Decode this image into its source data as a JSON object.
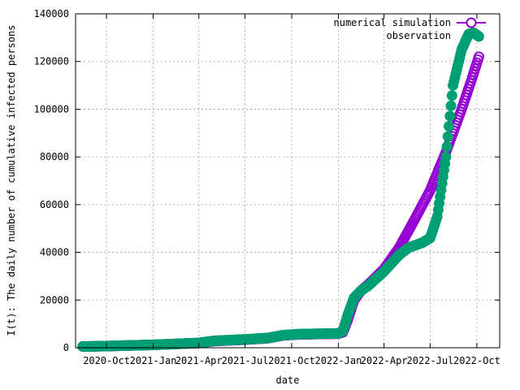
{
  "chart_data": {
    "type": "scatter",
    "xlabel": "date",
    "ylabel": "I(t): The daily number of cumulative infected persons",
    "x_axis_type": "date",
    "xlim": [
      "2020-08-01",
      "2022-11-15"
    ],
    "ylim": [
      0,
      140000
    ],
    "x_ticks": [
      {
        "date": "2020-10-01",
        "label": "2020-Oct"
      },
      {
        "date": "2021-01-01",
        "label": "2021-Jan"
      },
      {
        "date": "2021-04-01",
        "label": "2021-Apr"
      },
      {
        "date": "2021-07-01",
        "label": "2021-Jul"
      },
      {
        "date": "2021-10-01",
        "label": "2021-Oct"
      },
      {
        "date": "2022-01-01",
        "label": "2022-Jan"
      },
      {
        "date": "2022-04-01",
        "label": "2022-Apr"
      },
      {
        "date": "2022-07-01",
        "label": "2022-Jul"
      },
      {
        "date": "2022-10-01",
        "label": "2022-Oct"
      }
    ],
    "y_ticks": [
      0,
      20000,
      40000,
      60000,
      80000,
      100000,
      120000,
      140000
    ],
    "grid": true,
    "legend_position": "top-right",
    "series": [
      {
        "name": "numerical simulation",
        "color": "#9400d3",
        "marker": "open-circle",
        "points": [
          [
            "2020-08-15",
            500
          ],
          [
            "2020-10-01",
            700
          ],
          [
            "2021-01-01",
            1200
          ],
          [
            "2021-04-01",
            2000
          ],
          [
            "2021-05-01",
            2800
          ],
          [
            "2021-07-01",
            3400
          ],
          [
            "2021-08-15",
            4000
          ],
          [
            "2021-09-15",
            5200
          ],
          [
            "2021-10-15",
            5600
          ],
          [
            "2021-12-01",
            5800
          ],
          [
            "2022-01-01",
            5900
          ],
          [
            "2022-01-10",
            6500
          ],
          [
            "2022-01-20",
            12000
          ],
          [
            "2022-02-01",
            20000
          ],
          [
            "2022-02-15",
            24000
          ],
          [
            "2022-03-01",
            26500
          ],
          [
            "2022-04-01",
            33000
          ],
          [
            "2022-05-01",
            42000
          ],
          [
            "2022-06-01",
            54000
          ],
          [
            "2022-07-01",
            66000
          ],
          [
            "2022-08-01",
            82000
          ],
          [
            "2022-09-01",
            100000
          ],
          [
            "2022-09-20",
            112000
          ],
          [
            "2022-10-05",
            122000
          ]
        ]
      },
      {
        "name": "observation",
        "color": "#009e73",
        "marker": "filled-circle",
        "points": [
          [
            "2020-08-15",
            500
          ],
          [
            "2020-10-01",
            700
          ],
          [
            "2021-01-01",
            1200
          ],
          [
            "2021-04-01",
            2000
          ],
          [
            "2021-05-01",
            2900
          ],
          [
            "2021-07-01",
            3500
          ],
          [
            "2021-08-15",
            4100
          ],
          [
            "2021-09-15",
            5300
          ],
          [
            "2021-10-15",
            5700
          ],
          [
            "2021-12-01",
            5900
          ],
          [
            "2022-01-01",
            6000
          ],
          [
            "2022-01-10",
            7000
          ],
          [
            "2022-01-20",
            14000
          ],
          [
            "2022-02-01",
            21000
          ],
          [
            "2022-02-15",
            24000
          ],
          [
            "2022-03-01",
            26000
          ],
          [
            "2022-04-01",
            32000
          ],
          [
            "2022-05-01",
            39000
          ],
          [
            "2022-05-20",
            42000
          ],
          [
            "2022-06-15",
            44000
          ],
          [
            "2022-07-01",
            46000
          ],
          [
            "2022-07-15",
            55000
          ],
          [
            "2022-08-01",
            80000
          ],
          [
            "2022-08-15",
            110000
          ],
          [
            "2022-09-01",
            125000
          ],
          [
            "2022-09-15",
            131500
          ],
          [
            "2022-09-25",
            132000
          ],
          [
            "2022-10-05",
            130500
          ]
        ]
      }
    ]
  }
}
